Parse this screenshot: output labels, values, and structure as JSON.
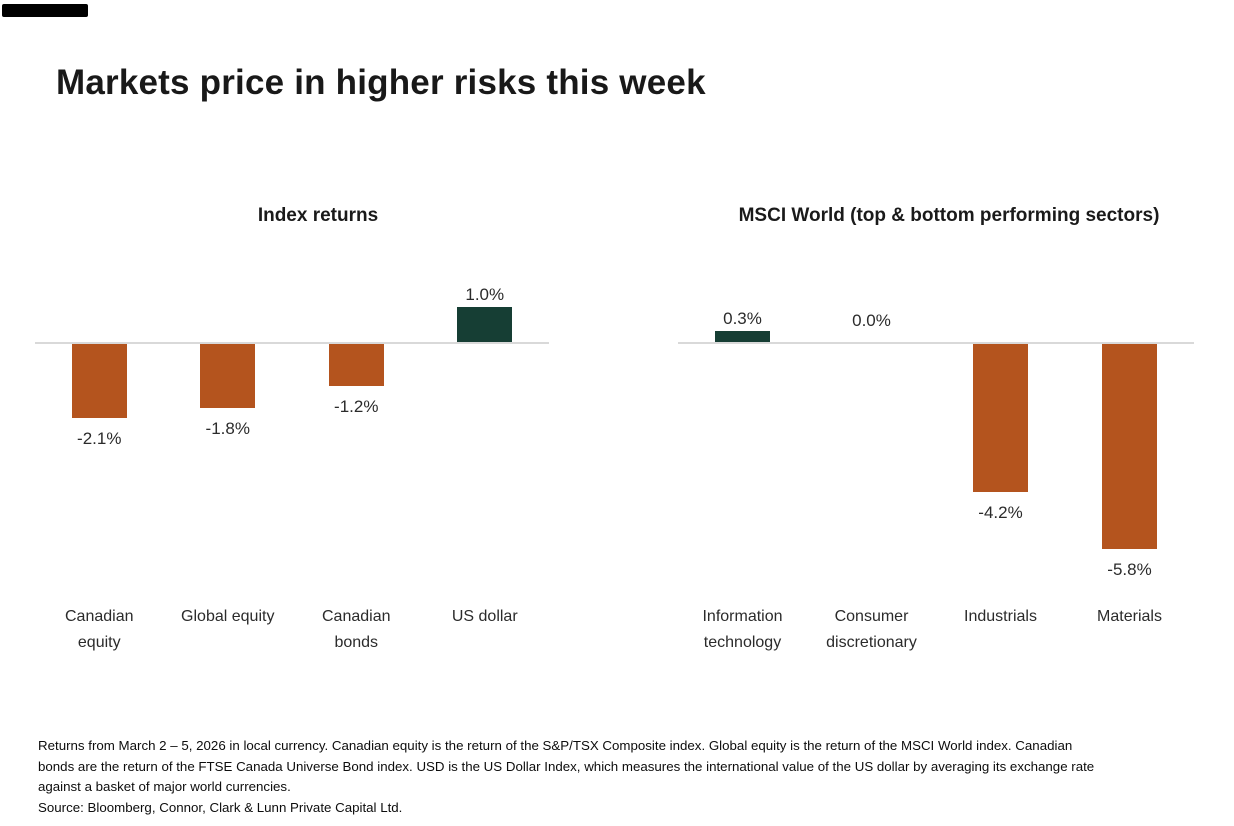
{
  "page": {
    "title": "Markets price in higher risks this week",
    "background": "#FFFFFF"
  },
  "colors": {
    "negative_bar": "#B4541E",
    "positive_bar": "#163E34",
    "axis_line": "#D9D9D9",
    "title_text": "#191919",
    "label_text": "#2B2B2B"
  },
  "chart_data": [
    {
      "type": "bar",
      "title": "Index returns",
      "categories": [
        "Canadian equity",
        "Global equity",
        "Canadian bonds",
        "US dollar"
      ],
      "category_label_lines": [
        [
          "Canadian",
          "equity"
        ],
        [
          "Global equity"
        ],
        [
          "Canadian",
          "bonds"
        ],
        [
          "US dollar"
        ]
      ],
      "values": [
        -2.1,
        -1.8,
        -1.2,
        1.0
      ],
      "value_labels": [
        "-2.1%",
        "-1.8%",
        "-1.2%",
        "1.0%"
      ],
      "bar_colors": [
        "#B4541E",
        "#B4541E",
        "#B4541E",
        "#163E34"
      ],
      "unit": "%",
      "baseline": 0,
      "gridlines": false,
      "axis_style": "zero line only, data labels on bars"
    },
    {
      "type": "bar",
      "title": "MSCI World (top & bottom performing sectors)",
      "categories": [
        "Information technology",
        "Consumer discretionary",
        "Industrials",
        "Materials"
      ],
      "category_label_lines": [
        [
          "Information",
          "technology"
        ],
        [
          "Consumer",
          "discretionary"
        ],
        [
          "Industrials"
        ],
        [
          "Materials"
        ]
      ],
      "values": [
        0.3,
        0.0,
        -4.2,
        -5.8
      ],
      "value_labels": [
        "0.3%",
        "0.0%",
        "-4.2%",
        "-5.8%"
      ],
      "bar_colors": [
        "#163E34",
        "#B4541E",
        "#B4541E",
        "#B4541E"
      ],
      "unit": "%",
      "baseline": 0,
      "gridlines": false,
      "axis_style": "zero line only, data labels on bars"
    }
  ],
  "footnote": {
    "lines": [
      "Returns from March 2 – 5, 2026 in local currency. Canadian equity is the return of the S&P/TSX Composite index. Global equity is the return of the MSCI World index. Canadian",
      "bonds are the return of the FTSE Canada Universe Bond index. USD is the US Dollar Index, which measures the international value of the US dollar by averaging its exchange rate",
      "against a basket of major world currencies."
    ],
    "source": "Source: Bloomberg, Connor, Clark & Lunn Private Capital Ltd."
  }
}
